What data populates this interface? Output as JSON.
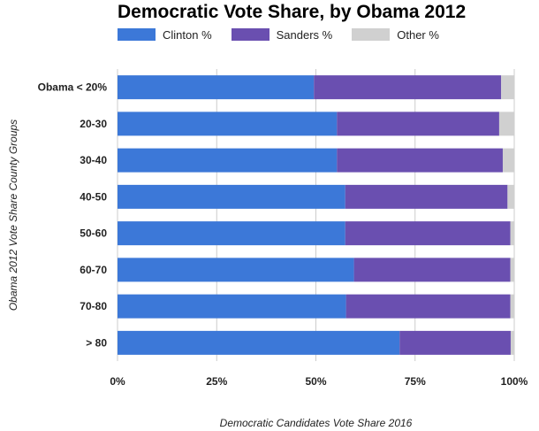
{
  "chart_data": {
    "type": "bar",
    "orientation": "horizontal",
    "stacked": true,
    "title": "Democratic Vote Share, by Obama 2012",
    "xlabel": "Democratic Candidates Vote Share 2016",
    "ylabel": "Obama 2012 Vote Share County Groups",
    "xlim": [
      0,
      100
    ],
    "x_ticks": [
      "0%",
      "25%",
      "50%",
      "75%",
      "100%"
    ],
    "grid": true,
    "legend_position": "top-left",
    "categories": [
      "Obama < 20%",
      "20-30",
      "30-40",
      "40-50",
      "50-60",
      "60-70",
      "70-80",
      "> 80"
    ],
    "series": [
      {
        "name": "Clinton %",
        "color": "#3c78d8",
        "values": [
          49.5,
          55.3,
          55.3,
          57.4,
          57.4,
          59.6,
          57.6,
          71.1
        ]
      },
      {
        "name": "Sanders %",
        "color": "#6a4fb0",
        "values": [
          47.2,
          40.9,
          41.8,
          40.9,
          41.6,
          39.4,
          41.4,
          28.0
        ]
      },
      {
        "name": "Other %",
        "color": "#d0d0d0",
        "values": [
          3.3,
          3.8,
          2.9,
          1.7,
          1.0,
          1.0,
          1.0,
          0.9
        ]
      }
    ]
  }
}
